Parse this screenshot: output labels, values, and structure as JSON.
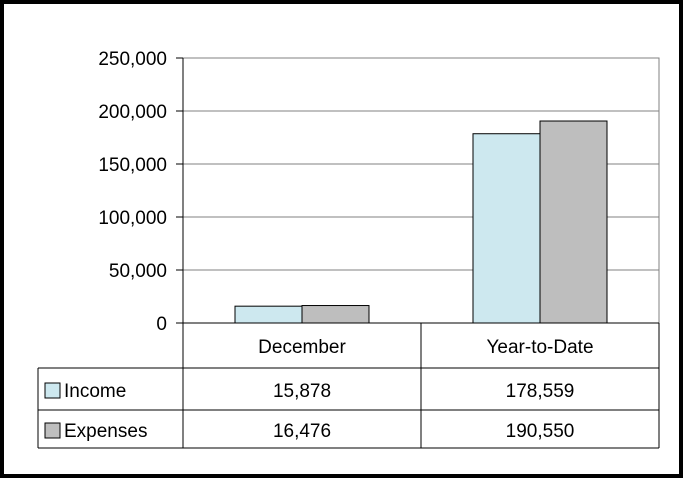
{
  "chart_data": {
    "type": "bar",
    "categories": [
      "December",
      "Year-to-Date"
    ],
    "series": [
      {
        "name": "Income",
        "values": [
          15878,
          178559
        ],
        "color": "#cde8ef"
      },
      {
        "name": "Expenses",
        "values": [
          16476,
          190550
        ],
        "color": "#bebebe"
      }
    ],
    "ylim": [
      0,
      250000
    ],
    "yticks": [
      "0",
      "50,000",
      "100,000",
      "150,000",
      "200,000",
      "250,000"
    ],
    "table": {
      "rows": [
        {
          "label": "Income",
          "cells": [
            "15,878",
            "178,559"
          ]
        },
        {
          "label": "Expenses",
          "cells": [
            "16,476",
            "190,550"
          ]
        }
      ]
    },
    "grid": true,
    "legend": "data-table"
  }
}
